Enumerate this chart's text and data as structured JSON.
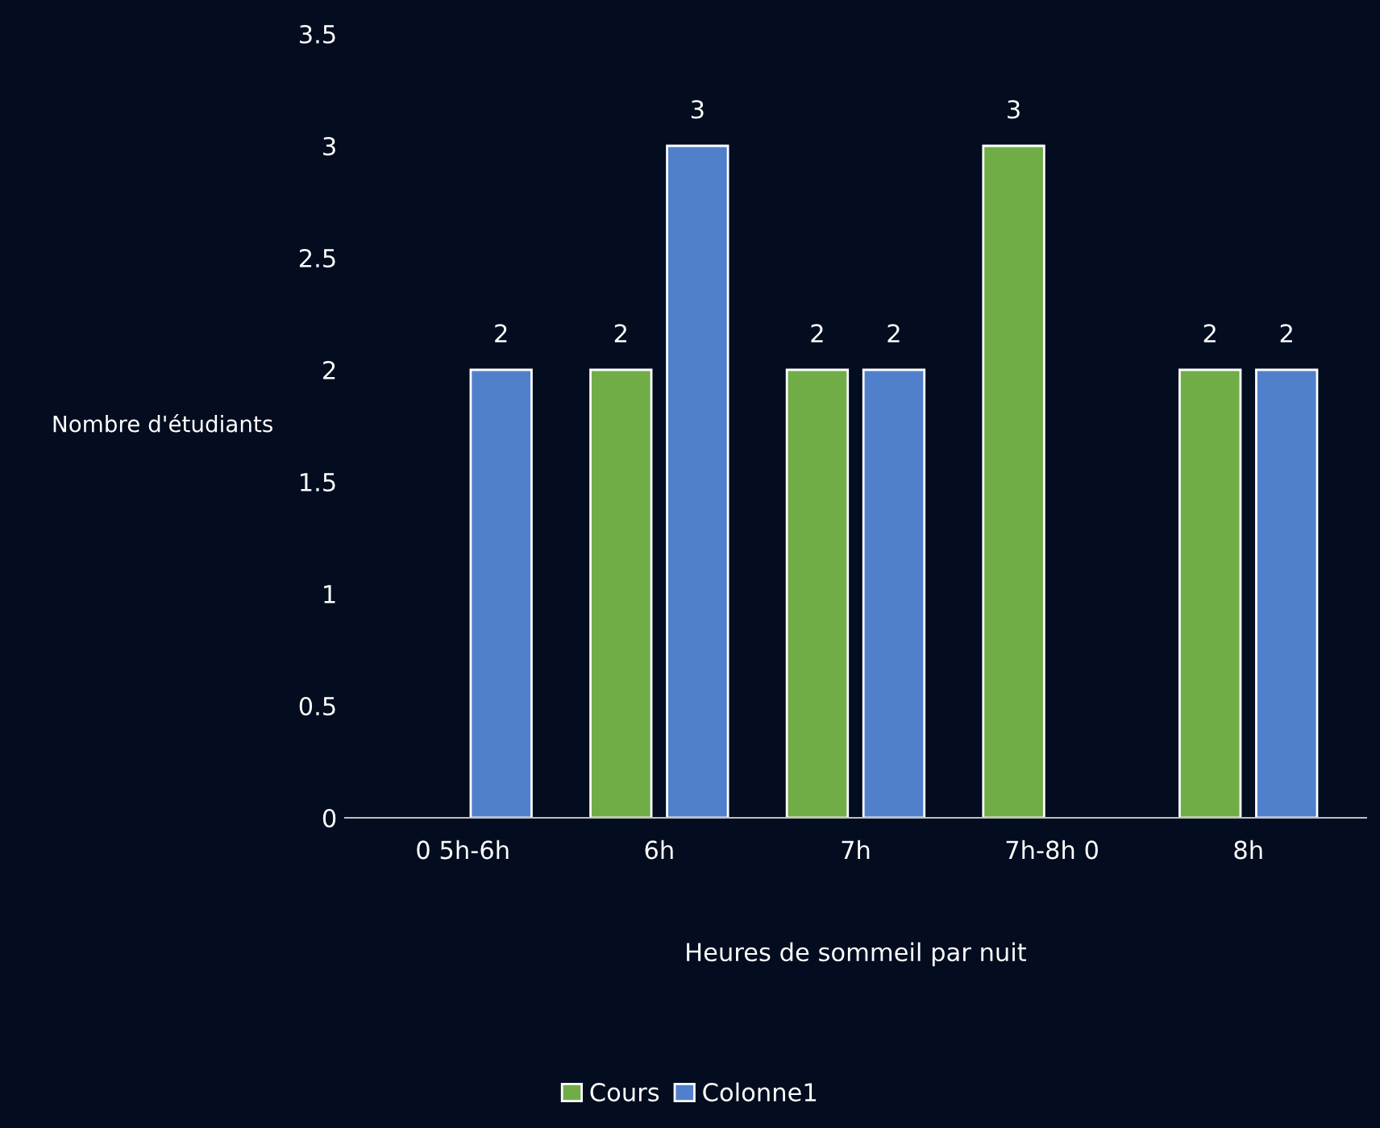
{
  "chart_data": {
    "type": "bar",
    "xlabel": "Heures de sommeil par nuit",
    "ylabel": "Nombre d'étudiants",
    "categories": [
      "0 5h-6h",
      "6h",
      "7h",
      "7h-8h 0",
      "8h"
    ],
    "series": [
      {
        "name": "Cours",
        "color": "#70ad47",
        "values": [
          null,
          2,
          2,
          3,
          2
        ]
      },
      {
        "name": "Colonne1",
        "color": "#5080cc",
        "values": [
          2,
          3,
          2,
          null,
          2
        ]
      }
    ],
    "ylim": [
      0,
      3.5
    ],
    "yticks": [
      0,
      0.5,
      1,
      1.5,
      2,
      2.5,
      3,
      3.5
    ],
    "data_labels": true,
    "grid": false,
    "legend": "bottom"
  }
}
